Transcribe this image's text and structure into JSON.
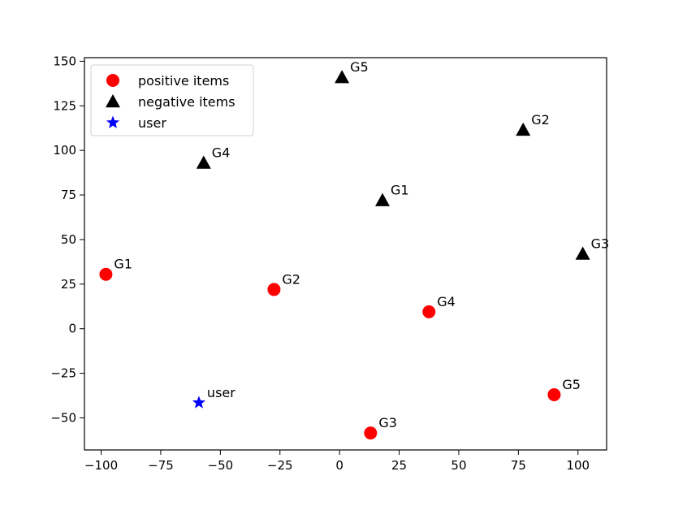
{
  "chart_data": {
    "type": "scatter",
    "title": "",
    "xlabel": "",
    "ylabel": "",
    "xlim": [
      -107,
      112
    ],
    "ylim": [
      -68,
      152
    ],
    "xticks": [
      -100,
      -75,
      -50,
      -25,
      0,
      25,
      50,
      75,
      100
    ],
    "yticks": [
      -50,
      -25,
      0,
      25,
      50,
      75,
      100,
      125,
      150
    ],
    "xtick_labels": [
      "−100",
      "−75",
      "−50",
      "−25",
      "0",
      "25",
      "50",
      "75",
      "100"
    ],
    "ytick_labels": [
      "−50",
      "−25",
      "0",
      "25",
      "50",
      "75",
      "100",
      "125",
      "150"
    ],
    "grid": false,
    "legend_position": "top-left",
    "series": [
      {
        "name": "positive items",
        "marker": "circle",
        "color": "#ff0000",
        "points": [
          {
            "x": -98,
            "y": 30.5,
            "label": "G1"
          },
          {
            "x": -27.5,
            "y": 22,
            "label": "G2"
          },
          {
            "x": 13,
            "y": -58.5,
            "label": "G3"
          },
          {
            "x": 37.5,
            "y": 9.5,
            "label": "G4"
          },
          {
            "x": 90,
            "y": -37,
            "label": "G5"
          }
        ]
      },
      {
        "name": "negative items",
        "marker": "triangle",
        "color": "#000000",
        "points": [
          {
            "x": 18,
            "y": 72,
            "label": "G1"
          },
          {
            "x": 77,
            "y": 111.5,
            "label": "G2"
          },
          {
            "x": 102,
            "y": 42,
            "label": "G3"
          },
          {
            "x": -57,
            "y": 93,
            "label": "G4"
          },
          {
            "x": 1,
            "y": 141,
            "label": "G5"
          }
        ]
      },
      {
        "name": "user",
        "marker": "star",
        "color": "#0000ff",
        "points": [
          {
            "x": -59,
            "y": -41.5,
            "label": "user"
          }
        ]
      }
    ]
  }
}
